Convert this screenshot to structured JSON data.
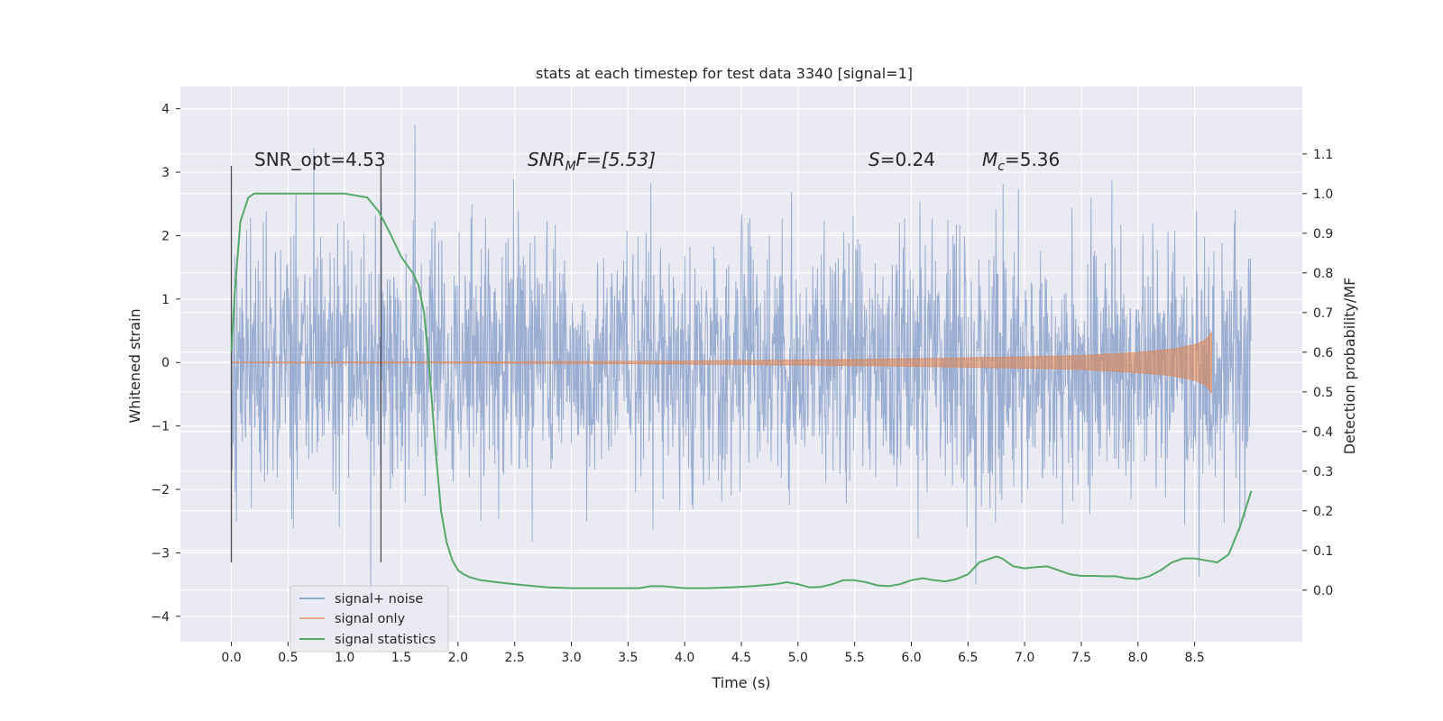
{
  "chart_data": {
    "type": "line",
    "title": "stats at each timestep for test data 3340 [signal=1]",
    "xlabel": "Time (s)",
    "ylabel": "Whitened strain",
    "ylabel_right": "Detection probability/MF",
    "xlim": [
      -0.45,
      9.45
    ],
    "ylim": [
      -4.4,
      4.35
    ],
    "ylim_right": [
      -0.13,
      1.27
    ],
    "x_ticks": [
      "0.0",
      "0.5",
      "1.0",
      "1.5",
      "2.0",
      "2.5",
      "3.0",
      "3.5",
      "4.0",
      "4.5",
      "5.0",
      "5.5",
      "6.0",
      "6.5",
      "7.0",
      "7.5",
      "8.0",
      "8.5"
    ],
    "x_tick_values": [
      0.0,
      0.5,
      1.0,
      1.5,
      2.0,
      2.5,
      3.0,
      3.5,
      4.0,
      4.5,
      5.0,
      5.5,
      6.0,
      6.5,
      7.0,
      7.5,
      8.0,
      8.5
    ],
    "y_ticks": [
      "4",
      "3",
      "2",
      "1",
      "0",
      "−1",
      "−2",
      "−3",
      "−4"
    ],
    "y_tick_values": [
      4,
      3,
      2,
      1,
      0,
      -1,
      -2,
      -3,
      -4
    ],
    "y_ticks_right": [
      "1.1",
      "1.0",
      "0.9",
      "0.8",
      "0.7",
      "0.6",
      "0.5",
      "0.4",
      "0.3",
      "0.2",
      "0.1",
      "0.0"
    ],
    "y_tick_values_right": [
      1.1,
      1.0,
      0.9,
      0.8,
      0.7,
      0.6,
      0.5,
      0.4,
      0.3,
      0.2,
      0.1,
      0.0
    ],
    "grid": true,
    "legend_position": "lower-left",
    "annotations": {
      "snr_opt": "SNR_opt=4.53",
      "snr_mf_base": "SNR",
      "snr_mf_sub": "M",
      "snr_mf_tail": "F=[5.53]",
      "s_label": "S",
      "s_value": "=0.24",
      "mc_base": "M",
      "mc_sub": "c",
      "mc_value": "=5.36"
    },
    "vertical_markers": [
      0.0,
      1.32
    ],
    "series": [
      {
        "name": "signal+ noise",
        "color": "#4c72b0",
        "axis": "left",
        "description": "whitened strain noise, approx amplitude 1 std, range -4 to 4, from t=0 to t=9.0",
        "x_range": [
          0.0,
          9.0
        ]
      },
      {
        "name": "signal only",
        "color": "#dd8452",
        "axis": "left",
        "description": "chirp signal growing in amplitude until merger near t=8.65",
        "x_range": [
          0.0,
          8.65
        ],
        "envelope_x": [
          0.0,
          2.0,
          3.0,
          4.0,
          5.0,
          6.0,
          7.0,
          7.5,
          8.0,
          8.3,
          8.5,
          8.6,
          8.65
        ],
        "envelope_amp": [
          0.005,
          0.01,
          0.015,
          0.025,
          0.04,
          0.06,
          0.09,
          0.11,
          0.16,
          0.21,
          0.28,
          0.36,
          0.48
        ]
      },
      {
        "name": "signal statistics",
        "color": "#55a868",
        "axis": "right",
        "x": [
          0.0,
          0.03,
          0.08,
          0.15,
          0.2,
          0.3,
          0.5,
          0.8,
          1.0,
          1.1,
          1.2,
          1.3,
          1.4,
          1.5,
          1.6,
          1.65,
          1.7,
          1.75,
          1.8,
          1.85,
          1.9,
          1.95,
          2.0,
          2.05,
          2.1,
          2.2,
          2.4,
          2.6,
          2.8,
          3.0,
          3.2,
          3.4,
          3.6,
          3.7,
          3.8,
          4.0,
          4.2,
          4.4,
          4.6,
          4.8,
          4.9,
          5.0,
          5.1,
          5.2,
          5.3,
          5.4,
          5.5,
          5.6,
          5.7,
          5.8,
          5.9,
          6.0,
          6.1,
          6.2,
          6.3,
          6.4,
          6.5,
          6.6,
          6.7,
          6.75,
          6.8,
          6.9,
          7.0,
          7.1,
          7.2,
          7.3,
          7.4,
          7.5,
          7.6,
          7.7,
          7.8,
          7.9,
          8.0,
          8.1,
          8.2,
          8.3,
          8.4,
          8.5,
          8.6,
          8.7,
          8.8,
          8.9,
          9.0
        ],
        "values": [
          0.6,
          0.75,
          0.93,
          0.99,
          1.0,
          1.0,
          1.0,
          1.0,
          1.0,
          0.995,
          0.99,
          0.955,
          0.9,
          0.84,
          0.8,
          0.77,
          0.7,
          0.55,
          0.36,
          0.2,
          0.12,
          0.075,
          0.05,
          0.04,
          0.033,
          0.025,
          0.018,
          0.012,
          0.007,
          0.005,
          0.005,
          0.005,
          0.005,
          0.01,
          0.01,
          0.005,
          0.005,
          0.007,
          0.01,
          0.015,
          0.02,
          0.015,
          0.007,
          0.008,
          0.015,
          0.025,
          0.025,
          0.02,
          0.012,
          0.01,
          0.015,
          0.025,
          0.03,
          0.025,
          0.022,
          0.028,
          0.04,
          0.07,
          0.08,
          0.085,
          0.08,
          0.06,
          0.055,
          0.058,
          0.06,
          0.05,
          0.04,
          0.036,
          0.036,
          0.035,
          0.035,
          0.03,
          0.028,
          0.035,
          0.05,
          0.07,
          0.08,
          0.08,
          0.075,
          0.07,
          0.09,
          0.16,
          0.25
        ]
      }
    ]
  }
}
